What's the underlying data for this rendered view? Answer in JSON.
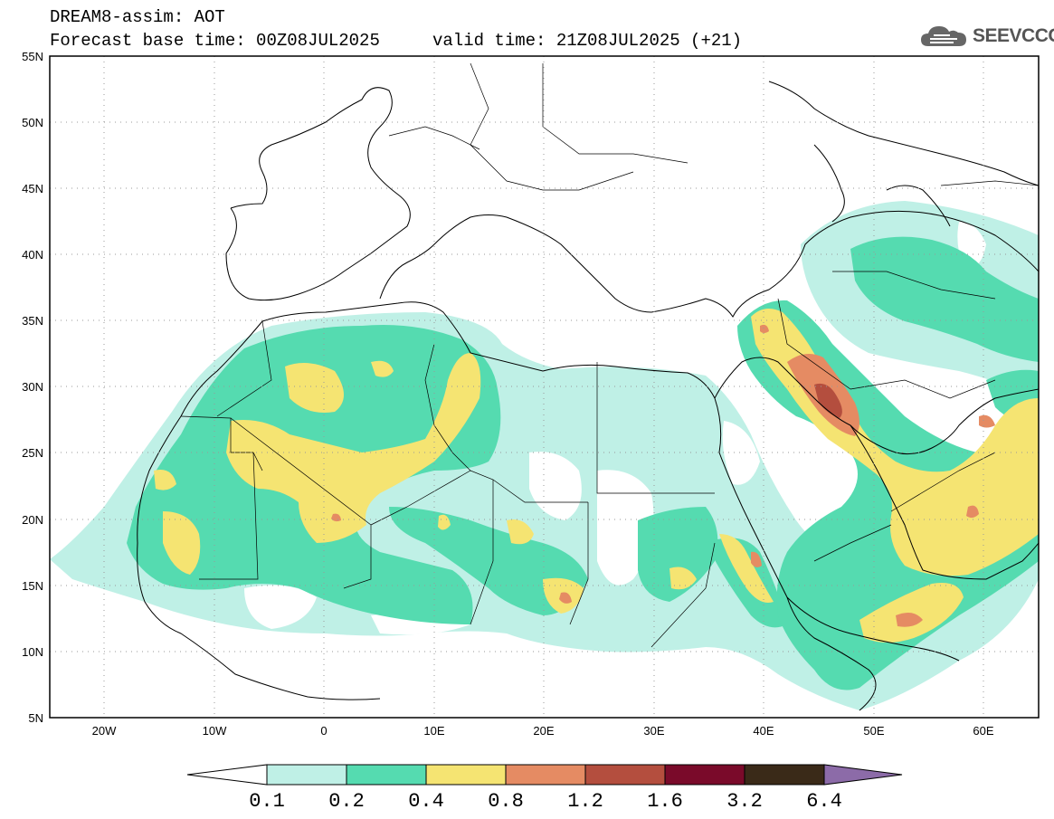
{
  "header": {
    "title": "DREAM8-assim: AOT",
    "base_time": "Forecast base time: 00Z08JUL2025",
    "valid_time": "valid time: 21Z08JUL2025 (+21)"
  },
  "logo": {
    "text": "SEEVCCC",
    "icon": "cloud-icon"
  },
  "map": {
    "lon_range": [
      -25,
      65
    ],
    "lat_range": [
      5,
      55
    ],
    "lon_ticks": [
      "20W",
      "10W",
      "0",
      "10E",
      "20E",
      "30E",
      "40E",
      "50E",
      "60E"
    ],
    "lat_ticks": [
      "55N",
      "50N",
      "45N",
      "40N",
      "35N",
      "30N",
      "25N",
      "20N",
      "15N",
      "10N",
      "5N"
    ],
    "grid": "dotted"
  },
  "colorbar": {
    "labels": [
      "0.1",
      "0.2",
      "0.4",
      "0.8",
      "1.2",
      "1.6",
      "3.2",
      "6.4"
    ],
    "colors": [
      "#ffffff",
      "#bff0e6",
      "#55dbb0",
      "#f5e472",
      "#e58b63",
      "#b44e3e",
      "#7a0a2a",
      "#3a2a18",
      "#8c6ba8"
    ]
  }
}
